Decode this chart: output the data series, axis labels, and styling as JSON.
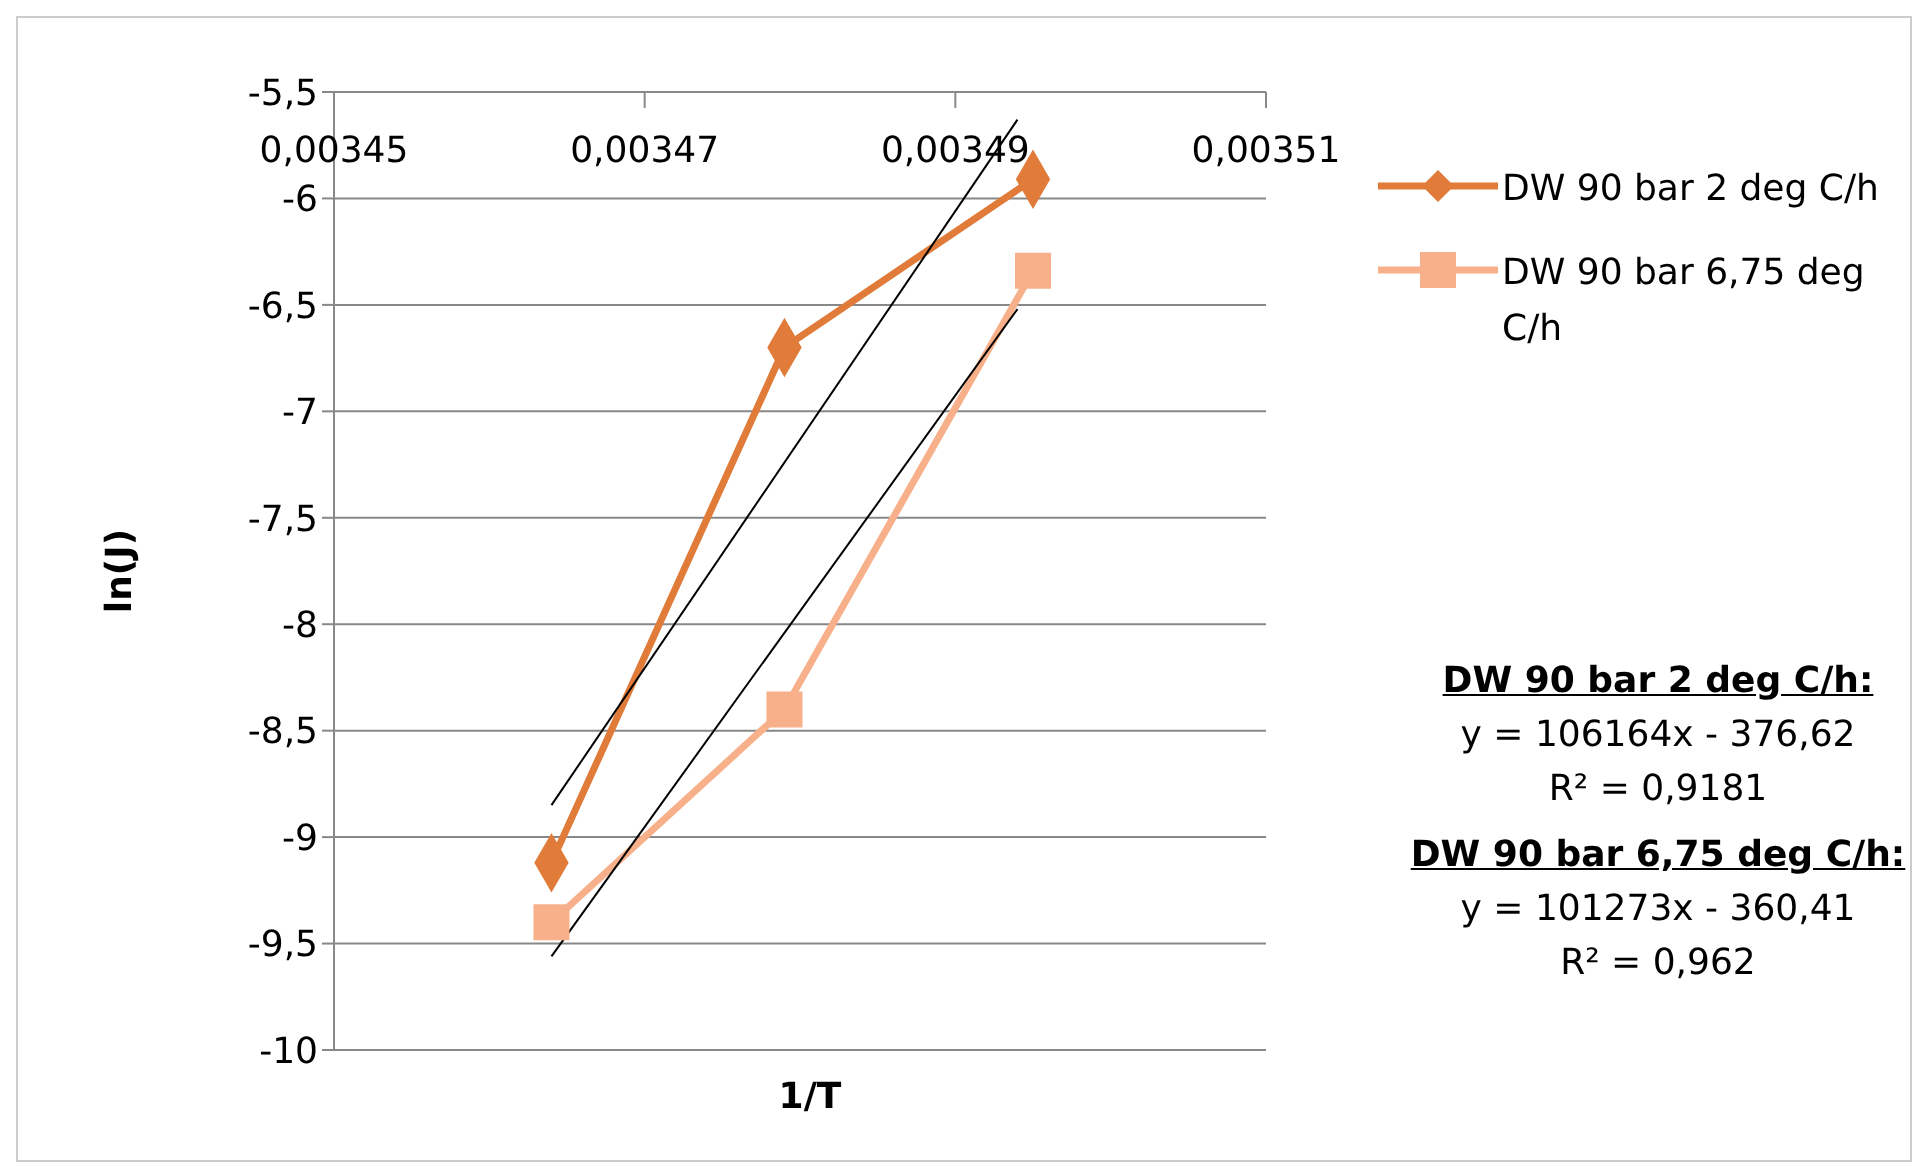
{
  "chart_data": {
    "type": "line",
    "xlabel": "1/T",
    "ylabel": "ln(J)",
    "xlim": [
      0.00345,
      0.00351
    ],
    "xticks": [
      {
        "value": 0.00345,
        "label": "0,00345"
      },
      {
        "value": 0.00347,
        "label": "0,00347"
      },
      {
        "value": 0.00349,
        "label": "0,00349"
      },
      {
        "value": 0.00351,
        "label": "0,00351"
      }
    ],
    "ylim": [
      -10,
      -5.5
    ],
    "yticks": [
      {
        "value": -10,
        "label": "-10"
      },
      {
        "value": -9.5,
        "label": "-9,5"
      },
      {
        "value": -9,
        "label": "-9"
      },
      {
        "value": -8.5,
        "label": "-8,5"
      },
      {
        "value": -8,
        "label": "-8"
      },
      {
        "value": -7.5,
        "label": "-7,5"
      },
      {
        "value": -7,
        "label": "-7"
      },
      {
        "value": -6.5,
        "label": "-6,5"
      },
      {
        "value": -6,
        "label": "-6"
      },
      {
        "value": -5.5,
        "label": "-5,5"
      }
    ],
    "grid": "y",
    "legend": "right",
    "series": [
      {
        "name": "DW 90 bar 2 deg C/h",
        "color": "#e07b39",
        "marker": "diamond",
        "x": [
          0.003464,
          0.003479,
          0.003495
        ],
        "values": [
          -9.12,
          -6.7,
          -5.91
        ]
      },
      {
        "name": "DW 90 bar 6,75 deg C/h",
        "color": "#f7b08a",
        "marker": "square",
        "x": [
          0.003464,
          0.003479,
          0.003495
        ],
        "values": [
          -9.4,
          -8.4,
          -6.34
        ]
      },
      {
        "color": "#000000",
        "marker": "none",
        "x": [
          0.003464,
          0.003494
        ],
        "values": [
          -8.85,
          -5.63
        ]
      },
      {
        "color": "#000000",
        "marker": "none",
        "x": [
          0.003464,
          0.003494
        ],
        "values": [
          -9.56,
          -6.52
        ]
      }
    ],
    "annotations": [
      "DW 90 bar 2 deg C/h:",
      "y = 106164x - 376,62",
      "R² = 0,9181",
      "DW 90 bar 6,75 deg C/h:",
      "y = 101273x - 360,41",
      "R² = 0,962"
    ]
  }
}
